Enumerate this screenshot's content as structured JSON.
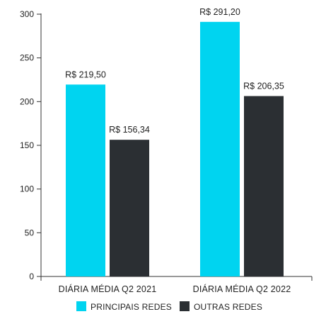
{
  "chart_data": {
    "type": "bar",
    "title": "",
    "xlabel": "",
    "ylabel": "",
    "categories": [
      "DIÁRIA MÉDIA Q2 2021",
      "DIÁRIA MÉDIA Q2 2022"
    ],
    "series": [
      {
        "name": "PRINCIPAIS REDES",
        "color": "#00d4f0",
        "values": [
          219.5,
          291.2
        ],
        "labels": [
          "R$ 219,50",
          "R$ 291,20"
        ]
      },
      {
        "name": "OUTRAS REDES",
        "color": "#2b2f33",
        "values": [
          156.34,
          206.35
        ],
        "labels": [
          "R$ 156,34",
          "R$ 206,35"
        ]
      }
    ],
    "ylim": [
      0,
      300
    ],
    "yticks": [
      0,
      50,
      100,
      150,
      200,
      250,
      300
    ],
    "grid": false,
    "legend": "bottom-center"
  }
}
